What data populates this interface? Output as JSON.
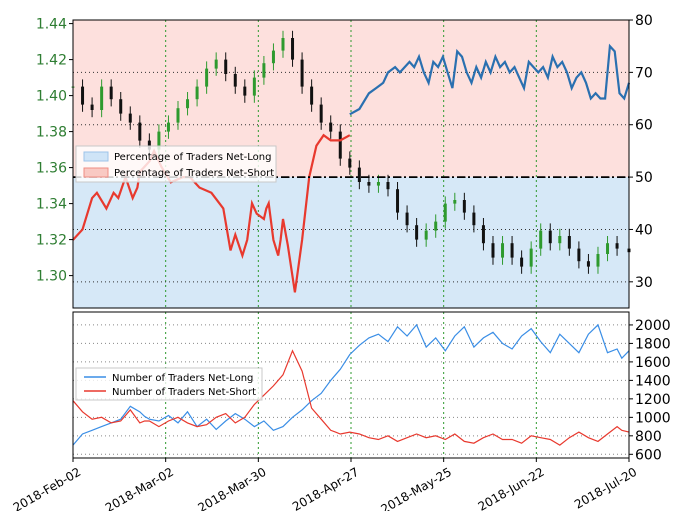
{
  "chart_data": [
    {
      "type": "line",
      "title": "",
      "panel": "top",
      "left_axis": {
        "ticks": [
          "1.30",
          "1.32",
          "1.34",
          "1.36",
          "1.38",
          "1.40",
          "1.42",
          "1.44"
        ],
        "ylim": [
          1.282,
          1.442
        ]
      },
      "right_axis": {
        "ticks": [
          "30",
          "40",
          "50",
          "60",
          "70",
          "80"
        ],
        "ylim": [
          25,
          80
        ]
      },
      "reference_line": 50,
      "legend": [
        "Percentage of Traders Net-Long",
        "Percentage of Traders Net-Short"
      ],
      "series": [
        {
          "name": "Percentage of Traders Net-Short",
          "color": "#e8392e",
          "x": [
            0,
            4,
            8,
            10,
            14,
            17,
            19,
            22,
            25,
            27,
            28,
            32,
            34,
            37,
            41,
            46,
            49,
            53,
            58,
            63,
            66,
            68,
            71,
            73,
            75,
            77,
            80,
            81,
            82,
            84,
            86,
            87,
            88,
            90,
            93,
            96,
            99,
            102,
            105,
            108,
            112,
            116
          ],
          "values": [
            38,
            40,
            46,
            47,
            44,
            47,
            46,
            50,
            46,
            48,
            51,
            53,
            55,
            52,
            49,
            50,
            50,
            48,
            47,
            44,
            36,
            39,
            35,
            38,
            45,
            43,
            42,
            44,
            45,
            38,
            35,
            38,
            42,
            37,
            28,
            38,
            50,
            56,
            58,
            57,
            57,
            58
          ]
        },
        {
          "name": "Percentage of Traders Net-Long",
          "color": "#2a70b0",
          "x": [
            116,
            120,
            124,
            127,
            130,
            132,
            135,
            137,
            139,
            141,
            143,
            145,
            147,
            149,
            151,
            153,
            155,
            157,
            159,
            161,
            163,
            165,
            167,
            169,
            171,
            173,
            175,
            177,
            179,
            181,
            183,
            185,
            187,
            189,
            191,
            193,
            195,
            197,
            199,
            201,
            203,
            205,
            207,
            209,
            211,
            213,
            215,
            217,
            219,
            221,
            223,
            225,
            227,
            229,
            231,
            233
          ],
          "values": [
            62,
            63,
            66,
            67,
            68,
            70,
            71,
            70,
            71,
            72,
            71,
            73,
            70,
            68,
            72,
            71,
            73,
            70,
            67,
            74,
            73,
            70,
            68,
            71,
            69,
            72,
            70,
            73,
            71,
            72,
            70,
            71,
            69,
            67,
            72,
            71,
            70,
            71,
            69,
            73,
            71,
            72,
            70,
            67,
            69,
            70,
            68,
            65,
            66,
            65,
            65,
            75,
            74,
            66,
            65,
            68
          ]
        }
      ]
    },
    {
      "type": "line",
      "title": "",
      "panel": "bottom",
      "axis": {
        "ticks": [
          "600",
          "800",
          "1000",
          "1200",
          "1400",
          "1600",
          "1800",
          "2000"
        ],
        "ylim": [
          560,
          2140
        ]
      },
      "legend": [
        "Number of Traders Net-Long",
        "Number of Traders Net-Short"
      ],
      "series": [
        {
          "name": "Number of Traders Net-Long",
          "color": "#3a8ee6",
          "x": [
            0,
            4,
            8,
            12,
            16,
            20,
            24,
            28,
            30,
            32,
            36,
            40,
            44,
            48,
            52,
            56,
            60,
            64,
            68,
            72,
            76,
            80,
            84,
            88,
            92,
            96,
            100,
            104,
            108,
            110,
            112,
            116,
            120,
            124,
            128,
            132,
            136,
            140,
            144,
            148,
            152,
            156,
            160,
            164,
            168,
            172,
            176,
            180,
            184,
            188,
            192,
            196,
            200,
            204,
            208,
            212,
            216,
            220,
            224,
            228,
            230,
            233
          ],
          "values": [
            700,
            820,
            860,
            900,
            940,
            980,
            1120,
            1060,
            1010,
            980,
            960,
            1020,
            940,
            1060,
            900,
            980,
            870,
            960,
            1040,
            980,
            900,
            960,
            860,
            900,
            1000,
            1080,
            1180,
            1260,
            1400,
            1460,
            1520,
            1680,
            1780,
            1860,
            1900,
            1820,
            1980,
            1880,
            2000,
            1760,
            1860,
            1720,
            1880,
            1980,
            1760,
            1860,
            1920,
            1800,
            1740,
            1880,
            1960,
            1820,
            1700,
            1900,
            1800,
            1700,
            1900,
            2000,
            1700,
            1740,
            1640,
            1720
          ]
        },
        {
          "name": "Number of Traders Net-Short",
          "color": "#e8392e",
          "x": [
            0,
            4,
            8,
            12,
            16,
            20,
            24,
            28,
            30,
            32,
            36,
            40,
            44,
            48,
            52,
            56,
            60,
            64,
            68,
            72,
            76,
            80,
            84,
            88,
            92,
            96,
            100,
            104,
            108,
            110,
            112,
            116,
            120,
            124,
            128,
            132,
            136,
            140,
            144,
            148,
            152,
            156,
            160,
            164,
            168,
            172,
            176,
            180,
            184,
            188,
            192,
            196,
            200,
            204,
            208,
            212,
            216,
            220,
            224,
            228,
            230,
            233
          ],
          "values": [
            1180,
            1060,
            980,
            1000,
            940,
            960,
            1080,
            940,
            960,
            960,
            900,
            960,
            1000,
            940,
            900,
            920,
            1000,
            1040,
            940,
            1000,
            1140,
            1240,
            1340,
            1460,
            1720,
            1500,
            1100,
            980,
            860,
            840,
            820,
            840,
            820,
            780,
            760,
            800,
            740,
            780,
            820,
            780,
            800,
            760,
            820,
            740,
            720,
            780,
            820,
            760,
            760,
            720,
            800,
            780,
            760,
            700,
            780,
            840,
            780,
            740,
            820,
            900,
            860,
            840
          ]
        }
      ]
    },
    {
      "type": "candlestick",
      "panel": "top",
      "axis": "left",
      "ohlc_midpoints": {
        "x": [
          0,
          4,
          8,
          12,
          16,
          20,
          24,
          28,
          32,
          36,
          40,
          44,
          48,
          52,
          56,
          60,
          64,
          68,
          72,
          76,
          80,
          84,
          88,
          92,
          96,
          100,
          104,
          108,
          112,
          116,
          120,
          124,
          128,
          132,
          136,
          140,
          144,
          148,
          152,
          156,
          160,
          164,
          168,
          172,
          176,
          180,
          184,
          188,
          192,
          196,
          200,
          204,
          208,
          212,
          216,
          220,
          224,
          228,
          233
        ],
        "values": [
          1.405,
          1.395,
          1.392,
          1.405,
          1.398,
          1.39,
          1.385,
          1.375,
          1.37,
          1.38,
          1.385,
          1.393,
          1.398,
          1.405,
          1.415,
          1.42,
          1.412,
          1.405,
          1.4,
          1.41,
          1.418,
          1.425,
          1.432,
          1.42,
          1.405,
          1.395,
          1.385,
          1.38,
          1.365,
          1.36,
          1.352,
          1.35,
          1.352,
          1.348,
          1.335,
          1.328,
          1.32,
          1.325,
          1.33,
          1.34,
          1.342,
          1.335,
          1.328,
          1.318,
          1.31,
          1.318,
          1.31,
          1.305,
          1.315,
          1.325,
          1.318,
          1.322,
          1.315,
          1.308,
          1.305,
          1.312,
          1.318,
          1.315,
          1.313
        ]
      }
    }
  ],
  "x_axis": {
    "tick_labels": [
      "2018-Feb-02",
      "2018-Mar-02",
      "2018-Mar-30",
      "2018-Apr-27",
      "2018-May-25",
      "2018-Jun-22",
      "2018-Jul-20"
    ],
    "tick_index": [
      0,
      40,
      80,
      120,
      160,
      200,
      240
    ]
  },
  "colors": {
    "long_fill": "#d6e8f7",
    "short_fill": "#fde0dd",
    "grid": "#2e9a2e",
    "left_tick": "#2e7d32",
    "candle_up": "#2e9a2e",
    "candle_down": "#111111"
  }
}
